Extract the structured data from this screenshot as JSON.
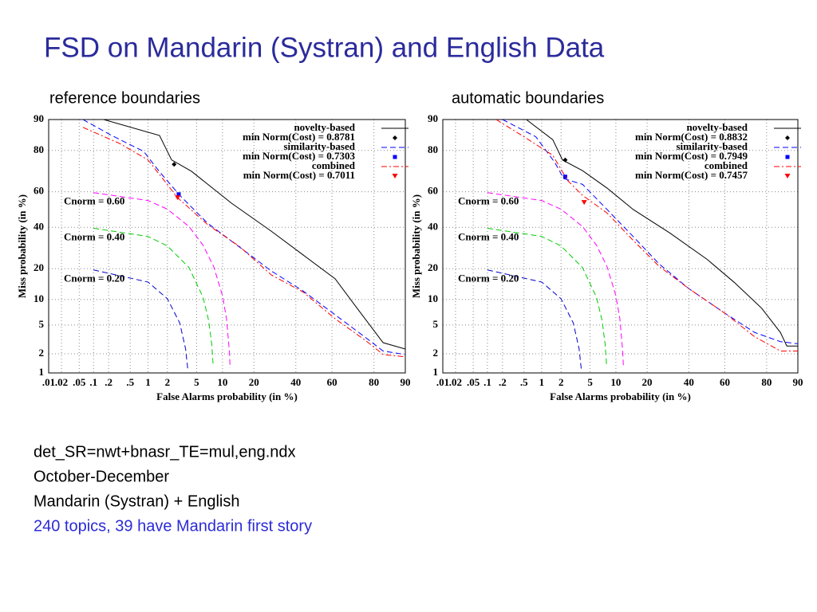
{
  "title": "FSD on Mandarin (Systran) and English Data",
  "chart_data": [
    {
      "type": "line",
      "subtitle": "reference boundaries",
      "x_label": "False Alarms probability (in %)",
      "y_label": "Miss probability (in %)",
      "scale": "normal-deviate",
      "grid": true,
      "legend": "upper right",
      "xlim": [
        0.01,
        90
      ],
      "ylim": [
        1,
        90
      ],
      "xticks": [
        {
          "value": 0.01,
          "label": ".01"
        },
        {
          "value": 0.02,
          "label": ".02"
        },
        {
          "value": 0.05,
          "label": ".05"
        },
        {
          "value": 0.1,
          "label": ".1"
        },
        {
          "value": 0.2,
          "label": ".2"
        },
        {
          "value": 0.5,
          "label": ".5"
        },
        1,
        2,
        5,
        10,
        20,
        40,
        60,
        80,
        90
      ],
      "yticks": [
        1,
        2,
        5,
        10,
        20,
        40,
        60,
        80,
        90
      ],
      "series": [
        {
          "name": "novelty-based",
          "color": "#000000",
          "dash": "solid",
          "x": [
            0.16,
            1.52,
            2.3,
            4.3,
            12.4,
            27.5,
            44,
            61.7,
            73.6,
            83.4,
            90
          ],
          "values": [
            90,
            85.4,
            76,
            70.7,
            53.6,
            37.9,
            25.9,
            16.2,
            7.5,
            2.9,
            2.35
          ]
        },
        {
          "name": "min Norm(Cost) = 0.8781",
          "color": "#000000",
          "marker": "diamond",
          "x": [
            2.5
          ],
          "values": [
            74
          ]
        },
        {
          "name": "similarity-based",
          "color": "#0000ff",
          "dash": "dashed",
          "x": [
            0.06,
            0.23,
            0.85,
            1.5,
            3.0,
            6.8,
            14.8,
            27.5,
            44,
            61.7,
            77.2,
            83.4,
            90
          ],
          "values": [
            90,
            85.4,
            79.6,
            70.7,
            58,
            42.3,
            29.7,
            19.1,
            12.3,
            6.7,
            3.3,
            2.2,
            1.95
          ]
        },
        {
          "name": "min Norm(Cost) = 0.7303",
          "color": "#0000ff",
          "marker": "square",
          "x": [
            2.9
          ],
          "values": [
            58.6
          ]
        },
        {
          "name": "combined",
          "color": "#ff0000",
          "dash": "dashdot",
          "x": [
            0.06,
            0.32,
            1.0,
            2.8,
            6.8,
            14.8,
            27.5,
            44,
            61.7,
            77.2,
            83.4,
            90
          ],
          "values": [
            87.9,
            82.7,
            76,
            56.7,
            41.5,
            30,
            17.6,
            12,
            6.0,
            3.0,
            1.95,
            1.8
          ]
        },
        {
          "name": "min Norm(Cost) = 0.7011",
          "color": "#ff0000",
          "marker": "triangle",
          "x": [
            2.8
          ],
          "values": [
            56.7
          ]
        }
      ],
      "annotations": [
        {
          "text": "Cnorm = 0.60",
          "color": "#ff00ff",
          "x": [
            0.1,
            1,
            2,
            4,
            6,
            8,
            10,
            11,
            11.8,
            12.0
          ],
          "values": [
            59.5,
            55.1,
            50.2,
            40.4,
            30.6,
            20.8,
            11,
            6.1,
            2.18,
            1.2
          ]
        },
        {
          "text": "Cnorm = 0.40",
          "color": "#00cc00",
          "x": [
            0.1,
            1,
            2,
            4,
            6,
            7,
            7.6,
            7.9
          ],
          "values": [
            39.5,
            35.1,
            30.2,
            20.4,
            10.6,
            5.7,
            2.76,
            1.29
          ]
        },
        {
          "text": "Cnorm = 0.20",
          "color": "#0000cc",
          "x": [
            0.1,
            1,
            2,
            3,
            3.6,
            3.85
          ],
          "values": [
            19.5,
            15.1,
            10.2,
            5.3,
            2.36,
            1.14
          ]
        }
      ]
    },
    {
      "type": "line",
      "subtitle": "automatic boundaries",
      "x_label": "False Alarms probability (in %)",
      "y_label": "Miss probability (in %)",
      "scale": "normal-deviate",
      "grid": true,
      "legend": "upper right",
      "xlim": [
        0.01,
        90
      ],
      "ylim": [
        1,
        90
      ],
      "xticks": [
        {
          "value": 0.01,
          "label": ".01"
        },
        {
          "value": 0.02,
          "label": ".02"
        },
        {
          "value": 0.05,
          "label": ".05"
        },
        {
          "value": 0.1,
          "label": ".1"
        },
        {
          "value": 0.2,
          "label": ".2"
        },
        {
          "value": 0.5,
          "label": ".5"
        },
        1,
        2,
        5,
        10,
        20,
        40,
        60,
        80,
        90
      ],
      "yticks": [
        1,
        2,
        5,
        10,
        20,
        40,
        60,
        80,
        90
      ],
      "series": [
        {
          "name": "novelty-based",
          "color": "#000000",
          "dash": "solid",
          "x": [
            0.55,
            1.5,
            2.1,
            4,
            8,
            15,
            30,
            50,
            65,
            78,
            85,
            87,
            90
          ],
          "values": [
            90,
            84,
            76,
            71,
            62,
            50,
            37,
            24,
            15,
            8,
            4,
            2.6,
            2.6
          ]
        },
        {
          "name": "min Norm(Cost) = 0.8832",
          "color": "#000000",
          "marker": "diamond",
          "x": [
            2.3
          ],
          "values": [
            76
          ]
        },
        {
          "name": "similarity-based",
          "color": "#0000ff",
          "dash": "dashed",
          "x": [
            0.2,
            0.8,
            1.6,
            2.2,
            4,
            8,
            15,
            25,
            40,
            60,
            75,
            85,
            90
          ],
          "values": [
            90,
            85,
            75,
            67,
            64,
            50,
            35,
            22,
            13,
            7,
            4,
            3,
            2.8
          ]
        },
        {
          "name": "min Norm(Cost) = 0.7949",
          "color": "#0000ff",
          "marker": "square",
          "x": [
            2.3
          ],
          "values": [
            68
          ]
        },
        {
          "name": "combined",
          "color": "#ff0000",
          "dash": "dashdot",
          "x": [
            0.15,
            0.5,
            1.5,
            2.5,
            4,
            8,
            15,
            25,
            40,
            60,
            75,
            85,
            90
          ],
          "values": [
            90,
            85,
            78,
            66,
            58,
            48,
            33,
            21,
            13,
            7,
            3.5,
            2.2,
            2.2
          ]
        },
        {
          "name": "min Norm(Cost) = 0.7457",
          "color": "#ff0000",
          "marker": "triangle",
          "x": [
            4.2
          ],
          "values": [
            54
          ]
        }
      ],
      "annotations": [
        {
          "text": "Cnorm = 0.60",
          "color": "#ff00ff",
          "x": [
            0.1,
            1,
            2,
            4,
            6,
            8,
            10,
            11,
            11.8,
            12.0
          ],
          "values": [
            59.5,
            55.1,
            50.2,
            40.4,
            30.6,
            20.8,
            11,
            6.1,
            2.18,
            1.2
          ]
        },
        {
          "text": "Cnorm = 0.40",
          "color": "#00cc00",
          "x": [
            0.1,
            1,
            2,
            4,
            6,
            7,
            7.6,
            7.9
          ],
          "values": [
            39.5,
            35.1,
            30.2,
            20.4,
            10.6,
            5.7,
            2.76,
            1.29
          ]
        },
        {
          "text": "Cnorm = 0.20",
          "color": "#0000cc",
          "x": [
            0.1,
            1,
            2,
            3,
            3.6,
            3.85
          ],
          "values": [
            19.5,
            15.1,
            10.2,
            5.3,
            2.36,
            1.14
          ]
        }
      ]
    }
  ],
  "notes": [
    "det_SR=nwt+bnasr_TE=mul,eng.ndx",
    "October-December",
    "Mandarin (Systran) + English",
    "240 topics, 39 have Mandarin first story"
  ]
}
